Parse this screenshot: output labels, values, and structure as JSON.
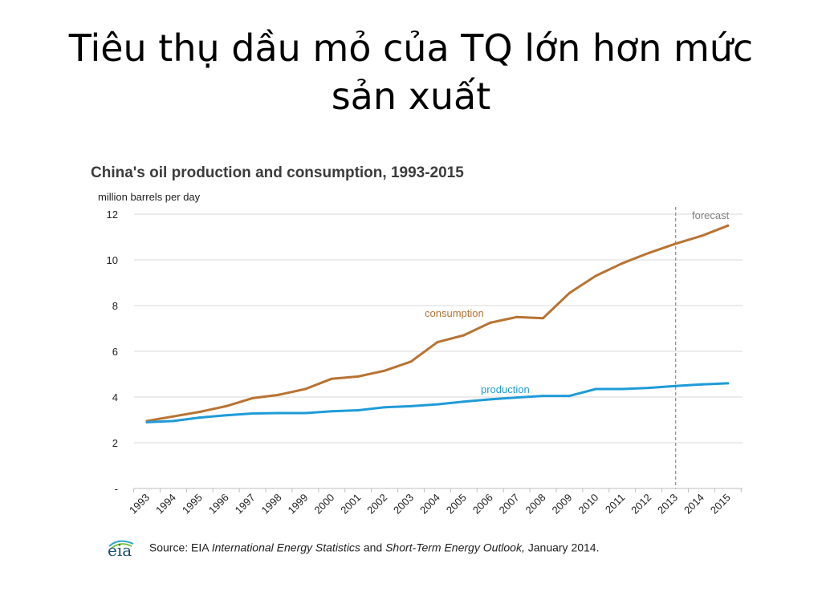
{
  "slide": {
    "title": "Tiêu thụ dầu mỏ của TQ lớn hơn mức sản xuất"
  },
  "source": {
    "logo_text": "eia",
    "prefix": "Source: EIA",
    "italic1": "International Energy Statistics",
    "middle": "and",
    "italic2": "Short-Term Energy Outlook,",
    "suffix": "January 2014."
  },
  "colors": {
    "consumption": "#b87333",
    "production": "#1f9bd7",
    "grid": "#d9d9d9",
    "forecast_line": "#8c8c8c",
    "logo": "#1b4f72"
  },
  "chart_data": {
    "type": "line",
    "title": "China's oil production and consumption, 1993-2015",
    "units": "million barrels per day",
    "x": [
      "1993",
      "1994",
      "1995",
      "1996",
      "1997",
      "1998",
      "1999",
      "2000",
      "2001",
      "2002",
      "2003",
      "2004",
      "2005",
      "2006",
      "2007",
      "2008",
      "2009",
      "2010",
      "2011",
      "2012",
      "2013",
      "2014",
      "2015"
    ],
    "ylim": [
      0,
      12
    ],
    "yticks": [
      {
        "value": 0,
        "label": "-"
      },
      {
        "value": 2,
        "label": "2"
      },
      {
        "value": 4,
        "label": "4"
      },
      {
        "value": 6,
        "label": "6"
      },
      {
        "value": 8,
        "label": "8"
      },
      {
        "value": 10,
        "label": "10"
      },
      {
        "value": 12,
        "label": "12"
      }
    ],
    "grid": true,
    "series": [
      {
        "name": "consumption",
        "color": "#b87333",
        "values": [
          2.95,
          3.15,
          3.35,
          3.6,
          3.95,
          4.1,
          4.35,
          4.8,
          4.9,
          5.15,
          5.55,
          6.4,
          6.7,
          7.25,
          7.5,
          7.45,
          8.55,
          9.3,
          9.85,
          10.3,
          10.7,
          11.05,
          11.5
        ]
      },
      {
        "name": "production",
        "color": "#1f9bd7",
        "values": [
          2.9,
          2.95,
          3.1,
          3.2,
          3.28,
          3.3,
          3.3,
          3.38,
          3.42,
          3.55,
          3.6,
          3.68,
          3.8,
          3.9,
          3.98,
          4.05,
          4.05,
          4.35,
          4.35,
          4.4,
          4.48,
          4.55,
          4.6
        ]
      }
    ],
    "annotations": [
      {
        "text": "forecast",
        "after_year": "2013"
      }
    ]
  }
}
